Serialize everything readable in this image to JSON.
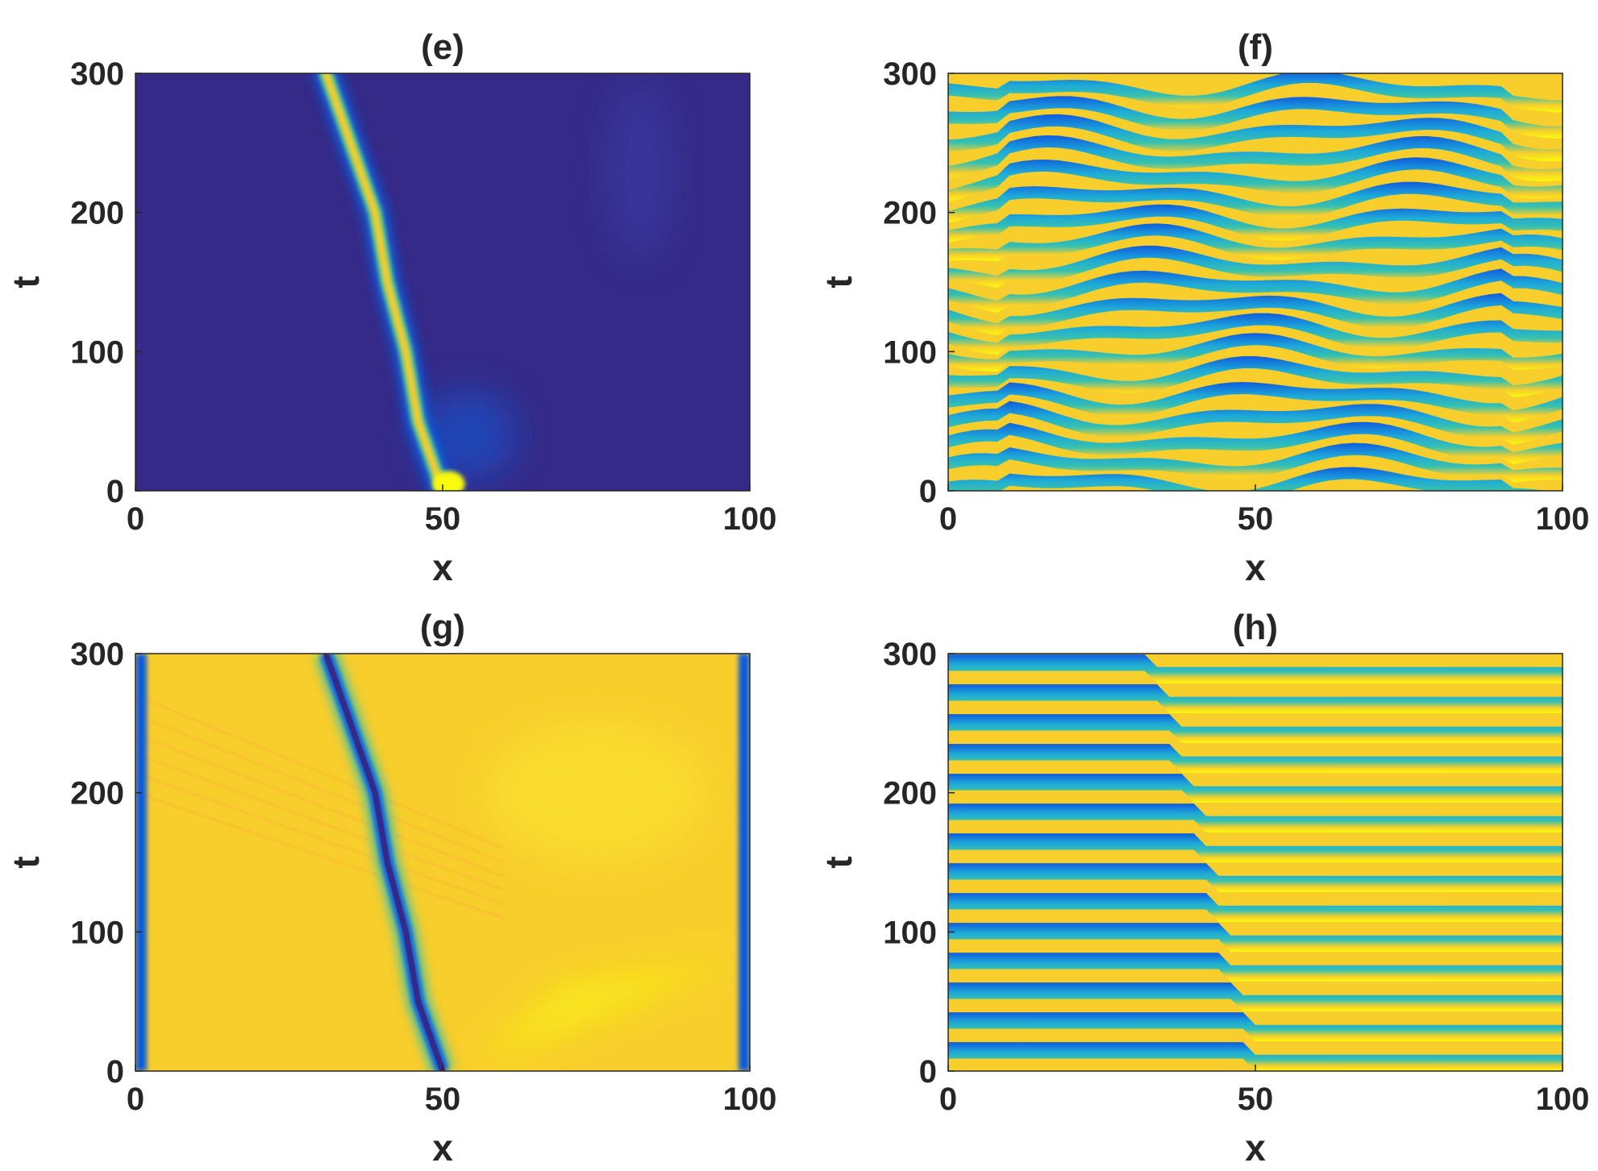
{
  "colors": {
    "dark": "#352a87",
    "blue": "#0f5cdd",
    "cyan": "#1ea9d8",
    "teal": "#38c1ae",
    "yellow": "#f9fb0e",
    "gold": "#f8ce2c",
    "amber": "#fcb633",
    "axis": "#262626"
  },
  "chart_data": [
    {
      "type": "heatmap",
      "title": "(e)",
      "xlabel": "x",
      "ylabel": "t",
      "xlim": [
        0,
        100
      ],
      "ylim": [
        0,
        300
      ],
      "xticks": [
        "0",
        "50",
        "100"
      ],
      "yticks": [
        "0",
        "100",
        "200",
        "300"
      ],
      "colormap": "parula",
      "field": "amplitude",
      "features": [
        {
          "name": "bright-trace",
          "x_at_t": [
            [
              0,
              50
            ],
            [
              50,
              46
            ],
            [
              100,
              44
            ],
            [
              150,
              41
            ],
            [
              200,
              39
            ],
            [
              250,
              35
            ],
            [
              300,
              31
            ]
          ]
        }
      ]
    },
    {
      "type": "heatmap",
      "title": "(f)",
      "xlabel": "x",
      "ylabel": "t",
      "xlim": [
        0,
        100
      ],
      "ylim": [
        0,
        300
      ],
      "xticks": [
        "0",
        "50",
        "100"
      ],
      "yticks": [
        "0",
        "100",
        "200",
        "300"
      ],
      "colormap": "parula",
      "field": "phase"
    },
    {
      "type": "heatmap",
      "title": "(g)",
      "xlabel": "x",
      "ylabel": "t",
      "xlim": [
        0,
        100
      ],
      "ylim": [
        0,
        300
      ],
      "xticks": [
        "0",
        "50",
        "100"
      ],
      "yticks": [
        "0",
        "100",
        "200",
        "300"
      ],
      "colormap": "parula",
      "field": "amplitude",
      "features": [
        {
          "name": "dark-trace",
          "x_at_t": [
            [
              0,
              50
            ],
            [
              50,
              46
            ],
            [
              100,
              44
            ],
            [
              150,
              41
            ],
            [
              200,
              39
            ],
            [
              250,
              35
            ],
            [
              300,
              31
            ]
          ]
        }
      ]
    },
    {
      "type": "heatmap",
      "title": "(h)",
      "xlabel": "x",
      "ylabel": "t",
      "xlim": [
        0,
        100
      ],
      "ylim": [
        0,
        300
      ],
      "xticks": [
        "0",
        "50",
        "100"
      ],
      "yticks": [
        "0",
        "100",
        "200",
        "300"
      ],
      "colormap": "parula",
      "field": "phase",
      "features": [
        {
          "name": "phase-defect-line",
          "x_at_t": [
            [
              0,
              50
            ],
            [
              50,
              46
            ],
            [
              100,
              44
            ],
            [
              150,
              41
            ],
            [
              200,
              39
            ],
            [
              250,
              35
            ],
            [
              300,
              31
            ]
          ]
        }
      ]
    }
  ]
}
